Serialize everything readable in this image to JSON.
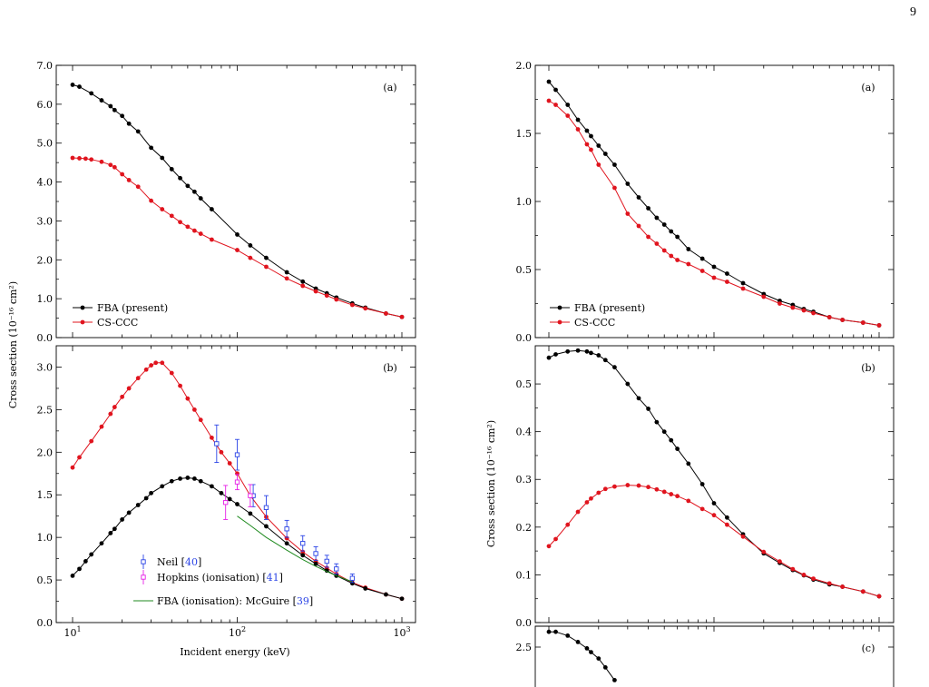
{
  "page_number": "9",
  "colors": {
    "fba": "#000000",
    "ccc": "#e0141e",
    "neil": "#2b44e6",
    "hopkins": "#e61ee6",
    "mcguire": "#1f8a1f"
  },
  "chart_data": [
    {
      "type": "line",
      "id": "left-a",
      "panel_label": "(a)",
      "xscale": "log",
      "ylabel": "Cross section (10⁻¹⁶ cm²)",
      "ylim": [
        0,
        7
      ],
      "yticks": [
        "0.0",
        "1.0",
        "2.0",
        "3.0",
        "4.0",
        "5.0",
        "6.0",
        "7.0"
      ],
      "legend": {
        "position": "bottom-left",
        "entries": [
          "FBA (present)",
          "CS-CCC"
        ]
      },
      "series": [
        {
          "name": "FBA (present)",
          "color": "#000000",
          "x": [
            10,
            11,
            13,
            15,
            17,
            18,
            20,
            22,
            25,
            30,
            35,
            40,
            45,
            50,
            55,
            60,
            70,
            100,
            120,
            150,
            200,
            250,
            300,
            350,
            400,
            500,
            600,
            800,
            1000
          ],
          "y": [
            6.5,
            6.45,
            6.28,
            6.1,
            5.95,
            5.85,
            5.7,
            5.5,
            5.3,
            4.88,
            4.62,
            4.33,
            4.1,
            3.9,
            3.75,
            3.58,
            3.3,
            2.65,
            2.37,
            2.05,
            1.68,
            1.44,
            1.26,
            1.14,
            1.03,
            0.88,
            0.77,
            0.62,
            0.53
          ]
        },
        {
          "name": "CS-CCC",
          "color": "#e0141e",
          "x": [
            10,
            11,
            12,
            13,
            15,
            17,
            18,
            20,
            22,
            25,
            30,
            35,
            40,
            45,
            50,
            55,
            60,
            70,
            100,
            120,
            150,
            200,
            250,
            300,
            350,
            400,
            500,
            600,
            800,
            1000
          ],
          "y": [
            4.62,
            4.61,
            4.6,
            4.58,
            4.52,
            4.44,
            4.38,
            4.2,
            4.05,
            3.88,
            3.52,
            3.3,
            3.13,
            2.97,
            2.85,
            2.75,
            2.67,
            2.52,
            2.25,
            2.05,
            1.82,
            1.52,
            1.33,
            1.19,
            1.08,
            0.98,
            0.84,
            0.75,
            0.62,
            0.53
          ]
        }
      ]
    },
    {
      "type": "line",
      "id": "left-b",
      "panel_label": "(b)",
      "xscale": "log",
      "xlabel": "Incident energy (keV)",
      "xlim": [
        10,
        1000
      ],
      "xticks": [
        "10¹",
        "10²",
        "10³"
      ],
      "ylim": [
        0,
        3.25
      ],
      "yticks": [
        "0.0",
        "0.5",
        "1.0",
        "1.5",
        "2.0",
        "2.5",
        "3.0"
      ],
      "legend": {
        "position": "bottom-center",
        "entries": [
          {
            "text": "Neil [",
            "ref": "40",
            "close": "]"
          },
          {
            "text": "Hopkins (ionisation) [",
            "ref": "41",
            "close": "]"
          },
          {
            "text": "FBA (ionisation): McGuire [",
            "ref": "39",
            "close": "]"
          }
        ]
      },
      "series": [
        {
          "name": "CS-CCC",
          "color": "#e0141e",
          "x": [
            10,
            11,
            13,
            15,
            17,
            18,
            20,
            22,
            25,
            28,
            30,
            32,
            35,
            40,
            45,
            50,
            55,
            60,
            70,
            80,
            90,
            100,
            120,
            150,
            200,
            250,
            300,
            350,
            400,
            500,
            600,
            800,
            1000
          ],
          "y": [
            1.82,
            1.94,
            2.13,
            2.3,
            2.45,
            2.53,
            2.65,
            2.75,
            2.87,
            2.97,
            3.02,
            3.05,
            3.05,
            2.93,
            2.78,
            2.63,
            2.5,
            2.38,
            2.17,
            2.0,
            1.87,
            1.75,
            1.49,
            1.24,
            0.99,
            0.83,
            0.72,
            0.64,
            0.57,
            0.47,
            0.41,
            0.33,
            0.28
          ]
        },
        {
          "name": "FBA (present)",
          "color": "#000000",
          "x": [
            10,
            11,
            12,
            13,
            15,
            17,
            18,
            20,
            22,
            25,
            28,
            30,
            35,
            40,
            45,
            50,
            55,
            60,
            70,
            80,
            90,
            100,
            120,
            150,
            200,
            250,
            300,
            350,
            400,
            500,
            600,
            800,
            1000
          ],
          "y": [
            0.55,
            0.63,
            0.72,
            0.8,
            0.93,
            1.05,
            1.1,
            1.21,
            1.29,
            1.38,
            1.46,
            1.52,
            1.6,
            1.66,
            1.69,
            1.7,
            1.69,
            1.66,
            1.6,
            1.52,
            1.45,
            1.39,
            1.28,
            1.13,
            0.93,
            0.79,
            0.69,
            0.61,
            0.55,
            0.46,
            0.4,
            0.33,
            0.28
          ]
        },
        {
          "name": "FBA (ionisation): McGuire",
          "color": "#1f8a1f",
          "x": [
            100,
            120,
            150,
            200,
            250,
            300,
            350,
            400,
            500
          ],
          "y": [
            1.25,
            1.14,
            1.0,
            0.85,
            0.74,
            0.66,
            0.6,
            0.55,
            0.48
          ]
        }
      ],
      "points": [
        {
          "name": "Neil",
          "color": "#2b44e6",
          "x": [
            75,
            100,
            125,
            150,
            200,
            250,
            300,
            350,
            400,
            500
          ],
          "y": [
            2.1,
            1.97,
            1.49,
            1.35,
            1.1,
            0.93,
            0.81,
            0.72,
            0.63,
            0.52
          ],
          "err": [
            0.22,
            0.18,
            0.13,
            0.14,
            0.1,
            0.09,
            0.08,
            0.07,
            0.06,
            0.05
          ]
        },
        {
          "name": "Hopkins (ionisation)",
          "color": "#e61ee6",
          "x": [
            85,
            100,
            120
          ],
          "y": [
            1.41,
            1.65,
            1.49
          ],
          "err": [
            0.2,
            0.09,
            0.13
          ]
        }
      ]
    },
    {
      "type": "line",
      "id": "right-a",
      "panel_label": "(a)",
      "xscale": "log",
      "ylim": [
        0,
        2.0
      ],
      "yticks": [
        "0.0",
        "0.5",
        "1.0",
        "1.5",
        "2.0"
      ],
      "legend": {
        "position": "bottom-left",
        "entries": [
          "FBA (present)",
          "CS-CCC"
        ]
      },
      "series": [
        {
          "name": "FBA (present)",
          "color": "#000000",
          "x": [
            10,
            11,
            13,
            15,
            17,
            18,
            20,
            22,
            25,
            30,
            35,
            40,
            45,
            50,
            55,
            60,
            70,
            85,
            100,
            120,
            150,
            200,
            250,
            300,
            350,
            400,
            500,
            600,
            800,
            1000
          ],
          "y": [
            1.88,
            1.82,
            1.71,
            1.6,
            1.52,
            1.48,
            1.41,
            1.35,
            1.27,
            1.13,
            1.03,
            0.95,
            0.88,
            0.83,
            0.78,
            0.74,
            0.65,
            0.58,
            0.52,
            0.47,
            0.4,
            0.32,
            0.27,
            0.24,
            0.21,
            0.19,
            0.15,
            0.13,
            0.11,
            0.09
          ]
        },
        {
          "name": "CS-CCC",
          "color": "#e0141e",
          "x": [
            10,
            11,
            13,
            15,
            17,
            18,
            20,
            25,
            30,
            35,
            40,
            45,
            50,
            55,
            60,
            70,
            85,
            100,
            120,
            150,
            200,
            250,
            300,
            350,
            400,
            500,
            600,
            800,
            1000
          ],
          "y": [
            1.74,
            1.71,
            1.63,
            1.53,
            1.42,
            1.38,
            1.27,
            1.1,
            0.91,
            0.82,
            0.74,
            0.69,
            0.64,
            0.6,
            0.57,
            0.54,
            0.49,
            0.44,
            0.41,
            0.36,
            0.3,
            0.25,
            0.22,
            0.2,
            0.18,
            0.15,
            0.13,
            0.11,
            0.09
          ]
        }
      ]
    },
    {
      "type": "line",
      "id": "right-b",
      "panel_label": "(b)",
      "xscale": "log",
      "ylabel": "Cross section (10⁻¹⁶ cm²)",
      "ylim": [
        0,
        0.58
      ],
      "yticks": [
        "0.0",
        "0.1",
        "0.2",
        "0.3",
        "0.4",
        "0.5"
      ],
      "series": [
        {
          "name": "FBA (present)",
          "color": "#000000",
          "x": [
            10,
            11,
            13,
            15,
            17,
            18,
            20,
            22,
            25,
            30,
            35,
            40,
            45,
            50,
            55,
            60,
            70,
            85,
            100,
            120,
            150,
            200,
            250,
            300,
            350,
            400,
            500,
            600,
            800,
            1000
          ],
          "y": [
            0.555,
            0.562,
            0.568,
            0.57,
            0.568,
            0.565,
            0.56,
            0.55,
            0.535,
            0.5,
            0.47,
            0.448,
            0.42,
            0.4,
            0.382,
            0.364,
            0.333,
            0.29,
            0.25,
            0.22,
            0.185,
            0.145,
            0.125,
            0.11,
            0.099,
            0.09,
            0.08,
            0.075,
            0.065,
            0.055
          ]
        },
        {
          "name": "CS-CCC",
          "color": "#e0141e",
          "x": [
            10,
            11,
            13,
            15,
            17,
            18,
            20,
            22,
            25,
            30,
            35,
            40,
            45,
            50,
            55,
            60,
            70,
            85,
            100,
            120,
            150,
            200,
            250,
            300,
            350,
            400,
            500,
            600,
            800,
            1000
          ],
          "y": [
            0.16,
            0.175,
            0.205,
            0.232,
            0.252,
            0.26,
            0.272,
            0.28,
            0.285,
            0.288,
            0.287,
            0.284,
            0.279,
            0.274,
            0.269,
            0.265,
            0.255,
            0.238,
            0.225,
            0.205,
            0.18,
            0.148,
            0.128,
            0.112,
            0.1,
            0.092,
            0.082,
            0.075,
            0.065,
            0.055
          ]
        }
      ]
    },
    {
      "type": "line",
      "id": "right-c",
      "panel_label": "(c)",
      "xscale": "log",
      "ylim": [
        2.2,
        2.65
      ],
      "yticks": [
        "2.5"
      ],
      "series": [
        {
          "name": "FBA (present)",
          "color": "#000000",
          "x": [
            10,
            11,
            13,
            15,
            17,
            18,
            20,
            22,
            25
          ],
          "y": [
            2.56,
            2.56,
            2.545,
            2.52,
            2.495,
            2.48,
            2.455,
            2.42,
            2.37
          ]
        }
      ]
    }
  ]
}
